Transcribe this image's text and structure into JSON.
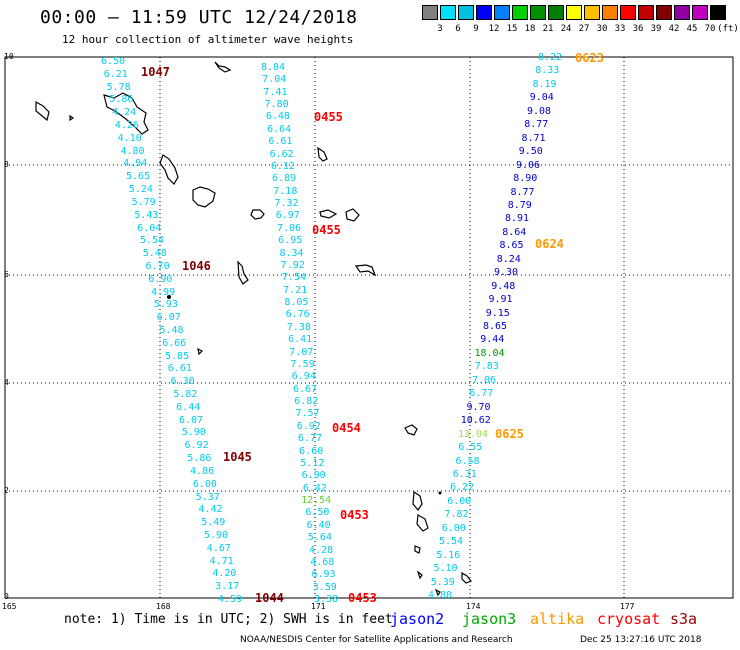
{
  "header": {
    "title": "00:00 – 11:59 UTC 12/24/2018",
    "subtitle": "12 hour collection of altimeter wave heights"
  },
  "colorbar": {
    "labels": [
      "3",
      "6",
      "9",
      "12",
      "15",
      "18",
      "21",
      "24",
      "27",
      "30",
      "33",
      "36",
      "39",
      "42",
      "45",
      "70",
      "(ft)"
    ],
    "colors": [
      "#808080",
      "#00e0ff",
      "#00c0e0",
      "#0000ff",
      "#0080ff",
      "#00d000",
      "#009000",
      "#008000",
      "#ffff00",
      "#ffc000",
      "#ff8000",
      "#ff0000",
      "#c00000",
      "#800000",
      "#9000a0",
      "#c000c0",
      "#000000"
    ]
  },
  "map": {
    "x_tick_labels": [
      "165",
      "168",
      "171",
      "174",
      "177"
    ],
    "y_tick_labels": [
      "0",
      "2",
      "4",
      "6",
      "8",
      "10"
    ],
    "tracks": [
      {
        "color": "#00ccee",
        "values": [
          "6.50",
          "6.21",
          "5.78",
          "5.86",
          "4.24",
          "4.26",
          "4.10",
          "4.80",
          "4.94",
          "5.65",
          "5.24",
          "5.79",
          "5.43",
          "6.04",
          "5.54",
          "5.48",
          "6.70",
          "6.90",
          "4.99",
          "5.93",
          "6.07",
          "5.48",
          "6.66",
          "5.85",
          "6.61",
          "6.30",
          "5.82",
          "6.44",
          "6.07",
          "5.90",
          "6.92",
          "5.86",
          "4.86",
          "6.00",
          "5.37",
          "4.42",
          "5.49",
          "5.90",
          "4.67",
          "4.71",
          "4.20",
          "3.17",
          "4.59"
        ]
      },
      {
        "color": "#00ccee",
        "values": [
          "8.04",
          "7.04",
          "7.41",
          "7.80",
          "6.48",
          "6.64",
          "6.61",
          "6.62",
          "6.12",
          "6.89",
          "7.18",
          "7.32",
          "6.97",
          "7.06",
          "6.95",
          "8.34",
          "7.92",
          "7.54",
          "7.21",
          "8.05",
          "6.76",
          "7.38",
          "6.41",
          "7.07",
          "7.59",
          "6.94",
          "6.67",
          "6.82",
          "7.57",
          "6.92",
          "6.77",
          "6.60",
          "5.12",
          "6.90",
          "6.42",
          "12.54",
          "6.50",
          "6.40",
          "5.64",
          "4.28",
          "4.68",
          "6.93",
          "3.59",
          "3.38"
        ]
      },
      {
        "color": "#00ccee",
        "values": [
          "8.22",
          "8.33",
          "8.19",
          "9.04",
          "9.08",
          "8.77",
          "8.71",
          "9.50",
          "9.06",
          "8.90",
          "8.77",
          "8.79",
          "8.91",
          "8.64",
          "8.65",
          "8.24",
          "9.30",
          "9.48",
          "9.91",
          "9.15",
          "8.65",
          "9.44",
          "18.04",
          "7.83",
          "7.06",
          "6.77",
          "9.70",
          "10.62",
          "13.04",
          "6.55",
          "6.58",
          "6.31",
          "6.22",
          "6.00",
          "7.82",
          "6.00",
          "5.54",
          "5.16",
          "5.10",
          "5.39",
          "4.80"
        ]
      }
    ],
    "pass_times": [
      {
        "text": "1047",
        "color": "#800000"
      },
      {
        "text": "1046",
        "color": "#800000"
      },
      {
        "text": "1045",
        "color": "#800000"
      },
      {
        "text": "1044",
        "color": "#800000"
      },
      {
        "text": "0455",
        "color": "#ff0000"
      },
      {
        "text": "0455",
        "color": "#ff0000"
      },
      {
        "text": "0454",
        "color": "#ff0000"
      },
      {
        "text": "0453",
        "color": "#ff0000"
      },
      {
        "text": "0453",
        "color": "#ff0000"
      },
      {
        "text": "0623",
        "color": "#ff9900"
      },
      {
        "text": "0624",
        "color": "#ff9900"
      },
      {
        "text": "0625",
        "color": "#ff9900"
      }
    ]
  },
  "footer": {
    "note": "note: 1) Time is in UTC; 2) SWH is in feet",
    "satellites": [
      {
        "name": "jason2",
        "color": "#0000ff"
      },
      {
        "name": "jason3",
        "color": "#00aa00"
      },
      {
        "name": "altika",
        "color": "#ff9900"
      },
      {
        "name": "cryosat",
        "color": "#ff0000"
      },
      {
        "name": "s3a",
        "color": "#990000"
      }
    ],
    "credit": "NOAA/NESDIS Center for Satellite Applications and Research",
    "timestamp": "Dec 25 13:27:16 UTC 2018"
  }
}
